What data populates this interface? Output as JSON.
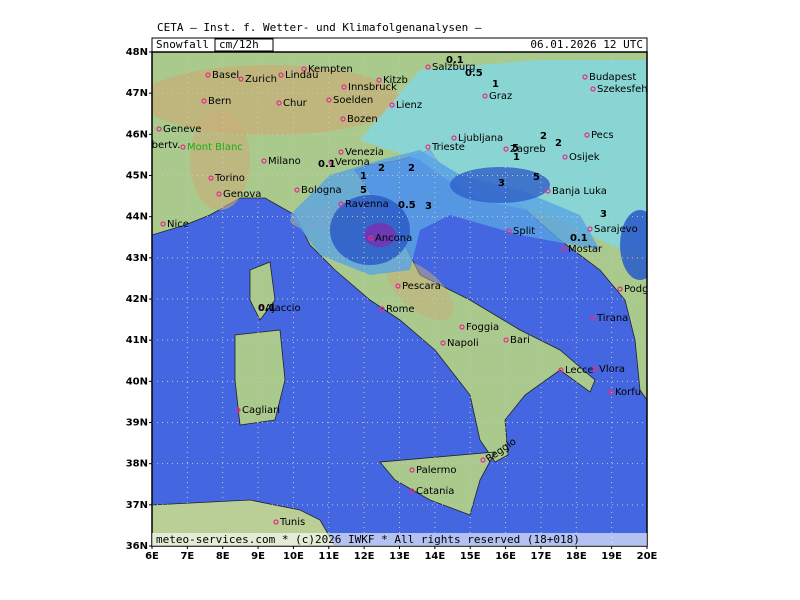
{
  "header": {
    "title": "CETA — Inst. f. Wetter- und Klimafolgenanalysen —",
    "field": "Snowfall",
    "unit": "cm/12h",
    "valid_time": "06.01.2026 12 UTC"
  },
  "footer": "meteo-services.com * (c)2026 IWKF * All rights reserved (18+018)",
  "lat_labels": [
    "48N",
    "47N",
    "46N",
    "45N",
    "44N",
    "43N",
    "42N",
    "41N",
    "40N",
    "39N",
    "38N",
    "37N",
    "36N"
  ],
  "lon_labels": [
    "6E",
    "7E",
    "8E",
    "9E",
    "10E",
    "11E",
    "12E",
    "13E",
    "14E",
    "15E",
    "16E",
    "17E",
    "18E",
    "19E",
    "20E"
  ],
  "cities": [
    "Salzburg",
    "Kempten",
    "Lindau",
    "Basel",
    "Zurich",
    "Bern",
    "Chur",
    "Kitzb",
    "Innsbruck",
    "Soelden",
    "Lienz",
    "Bozen",
    "Geneve",
    "Albertv.",
    "Mont Blanc",
    "Milano",
    "Torino",
    "Genova",
    "Nice",
    "Verona",
    "Venezia",
    "Bologna",
    "Ravenna",
    "Ancona",
    "Pescara",
    "Rome",
    "Foggia",
    "Bari",
    "Napoli",
    "Lecce",
    "Palermo",
    "Catania",
    "Reggio",
    "Cagliari",
    "Ajaccio",
    "Tunis",
    "Budapest",
    "Szekesfeh",
    "Graz",
    "Ljubljana",
    "Trieste",
    "Zagreb",
    "Pecs",
    "Osijek",
    "Banja Luka",
    "Split",
    "Mostar",
    "Sarajevo",
    "Podgorica",
    "Tirana",
    "Vlora",
    "Korfu"
  ],
  "contour_labels": [
    "0.1",
    "0.5",
    "1",
    "2",
    "2",
    "5",
    "3",
    "0.1",
    "1",
    "2",
    "5",
    "0.5",
    "3",
    "1",
    "5",
    "3",
    "0.1",
    "2",
    "0.1"
  ]
}
